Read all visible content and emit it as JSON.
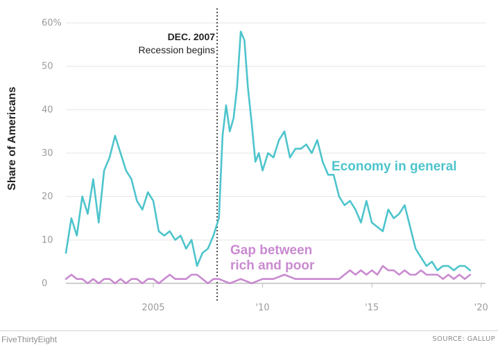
{
  "footer": {
    "brand": "FiveThirtyEight",
    "source": "SOURCE: GALLUP"
  },
  "colors": {
    "economy": "#4dc4cc",
    "gap": "#c98ad0",
    "grid": "#e4e4e4",
    "annotation": "#222222"
  },
  "chart_data": {
    "type": "line",
    "title": "",
    "ylabel": "Share of Americans",
    "xlabel": "",
    "xlim": [
      2001.0,
      2020.2
    ],
    "ylim": [
      0,
      60
    ],
    "grid": true,
    "y_ticks": [
      {
        "value": 0,
        "label": "0"
      },
      {
        "value": 10,
        "label": "10"
      },
      {
        "value": 20,
        "label": "20"
      },
      {
        "value": 30,
        "label": "30"
      },
      {
        "value": 40,
        "label": "40"
      },
      {
        "value": 50,
        "label": "50"
      },
      {
        "value": 60,
        "label": "60%"
      }
    ],
    "x_ticks": [
      {
        "value": 2005,
        "label": "2005"
      },
      {
        "value": 2010,
        "label": "'10"
      },
      {
        "value": 2015,
        "label": "'15"
      },
      {
        "value": 2020,
        "label": "'20"
      }
    ],
    "annotation": {
      "x": 2007.92,
      "title": "DEC. 2007",
      "text": "Recession begins"
    },
    "series": [
      {
        "name": "Economy in general",
        "label_lines": [
          "Economy in general"
        ],
        "x": [
          2001.0,
          2001.25,
          2001.5,
          2001.75,
          2002.0,
          2002.25,
          2002.5,
          2002.75,
          2003.0,
          2003.25,
          2003.5,
          2003.75,
          2004.0,
          2004.25,
          2004.5,
          2004.75,
          2005.0,
          2005.25,
          2005.5,
          2005.75,
          2006.0,
          2006.25,
          2006.5,
          2006.75,
          2007.0,
          2007.25,
          2007.5,
          2007.75,
          2008.0,
          2008.17,
          2008.33,
          2008.5,
          2008.67,
          2008.83,
          2009.0,
          2009.17,
          2009.33,
          2009.5,
          2009.67,
          2009.83,
          2010.0,
          2010.25,
          2010.5,
          2010.75,
          2011.0,
          2011.25,
          2011.5,
          2011.75,
          2012.0,
          2012.25,
          2012.5,
          2012.75,
          2013.0,
          2013.25,
          2013.5,
          2013.75,
          2014.0,
          2014.25,
          2014.5,
          2014.75,
          2015.0,
          2015.25,
          2015.5,
          2015.75,
          2016.0,
          2016.25,
          2016.5,
          2016.75,
          2017.0,
          2017.25,
          2017.5,
          2017.75,
          2018.0,
          2018.25,
          2018.5,
          2018.75,
          2019.0,
          2019.25,
          2019.5
        ],
        "values": [
          7,
          15,
          11,
          20,
          16,
          24,
          14,
          26,
          29,
          34,
          30,
          26,
          24,
          19,
          17,
          21,
          19,
          12,
          11,
          12,
          10,
          11,
          8,
          10,
          4,
          7,
          8,
          11,
          15,
          34,
          41,
          35,
          38,
          45,
          58,
          56,
          45,
          37,
          28,
          30,
          26,
          30,
          29,
          33,
          35,
          29,
          31,
          31,
          32,
          30,
          33,
          28,
          25,
          25,
          20,
          18,
          19,
          17,
          14,
          19,
          14,
          13,
          12,
          17,
          15,
          16,
          18,
          13,
          8,
          6,
          4,
          5,
          3,
          4,
          4,
          3,
          4,
          4,
          3
        ]
      },
      {
        "name": "Gap between rich and poor",
        "label_lines": [
          "Gap between",
          "rich and poor"
        ],
        "x": [
          2001.0,
          2001.25,
          2001.5,
          2001.75,
          2002.0,
          2002.25,
          2002.5,
          2002.75,
          2003.0,
          2003.25,
          2003.5,
          2003.75,
          2004.0,
          2004.25,
          2004.5,
          2004.75,
          2005.0,
          2005.25,
          2005.5,
          2005.75,
          2006.0,
          2006.25,
          2006.5,
          2006.75,
          2007.0,
          2007.25,
          2007.5,
          2007.75,
          2008.0,
          2008.5,
          2009.0,
          2009.5,
          2010.0,
          2010.5,
          2011.0,
          2011.5,
          2012.0,
          2012.5,
          2013.0,
          2013.5,
          2014.0,
          2014.25,
          2014.5,
          2014.75,
          2015.0,
          2015.25,
          2015.5,
          2015.75,
          2016.0,
          2016.25,
          2016.5,
          2016.75,
          2017.0,
          2017.25,
          2017.5,
          2017.75,
          2018.0,
          2018.25,
          2018.5,
          2018.75,
          2019.0,
          2019.25,
          2019.5
        ],
        "values": [
          1,
          2,
          1,
          1,
          0,
          1,
          0,
          1,
          1,
          0,
          1,
          0,
          1,
          1,
          0,
          1,
          1,
          0,
          1,
          2,
          1,
          1,
          1,
          2,
          2,
          1,
          0,
          1,
          1,
          0,
          1,
          0,
          1,
          1,
          2,
          1,
          1,
          1,
          1,
          1,
          3,
          2,
          3,
          2,
          3,
          2,
          4,
          3,
          3,
          2,
          3,
          2,
          2,
          3,
          2,
          2,
          2,
          1,
          2,
          1,
          2,
          1,
          2
        ]
      }
    ]
  }
}
